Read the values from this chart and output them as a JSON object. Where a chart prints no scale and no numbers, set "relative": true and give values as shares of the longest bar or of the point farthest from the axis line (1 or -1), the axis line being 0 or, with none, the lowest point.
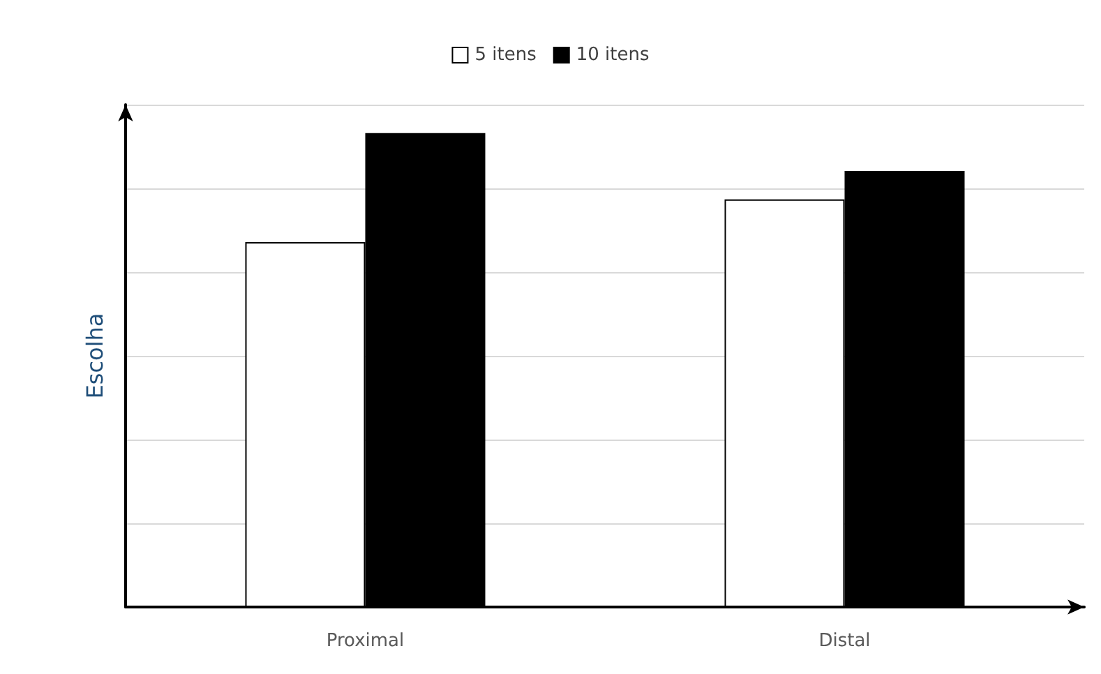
{
  "chart_data": {
    "type": "bar",
    "ylabel": "Escolha",
    "categories": [
      "Proximal",
      "Distal"
    ],
    "series": [
      {
        "name": "5 itens",
        "color": "#ffffff",
        "values": [
          0.77,
          0.86
        ]
      },
      {
        "name": "10 itens",
        "color": "#000000",
        "values": [
          1,
          0.92
        ]
      }
    ],
    "relative": true,
    "grid": "y",
    "legend": "top"
  }
}
